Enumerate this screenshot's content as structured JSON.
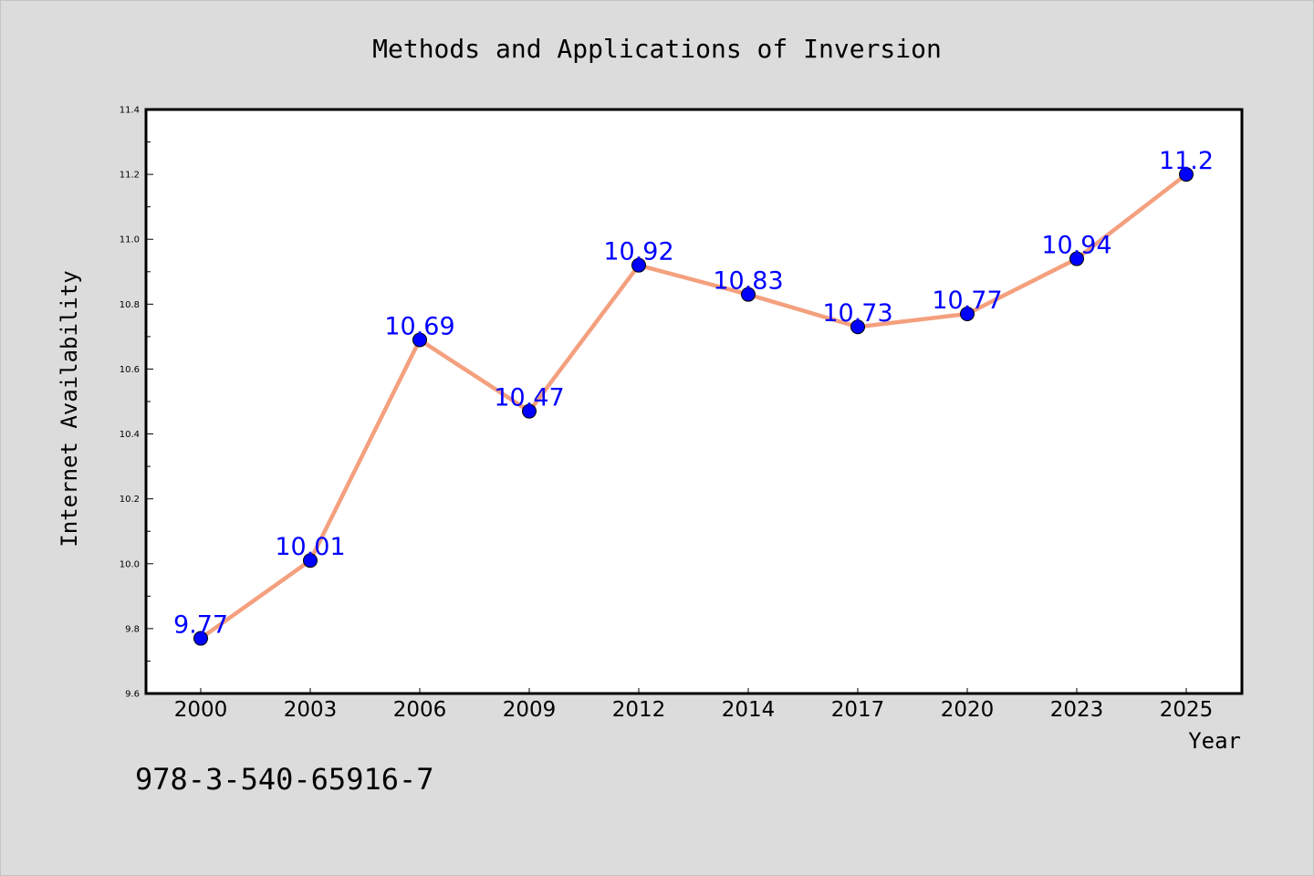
{
  "chart_data": {
    "type": "line",
    "title": "Methods and Applications of Inversion",
    "xlabel": "Year",
    "ylabel": "Internet Availability",
    "categories": [
      "2000",
      "2003",
      "2006",
      "2009",
      "2012",
      "2014",
      "2017",
      "2020",
      "2023",
      "2025"
    ],
    "series": [
      {
        "values": [
          9.77,
          10.01,
          10.69,
          10.47,
          10.92,
          10.83,
          10.73,
          10.77,
          10.94,
          11.2
        ],
        "data_labels": [
          "9.77",
          "10.01",
          "10.69",
          "10.47",
          "10.92",
          "10.83",
          "10.73",
          "10.77",
          "10.94",
          "11.2"
        ],
        "line_color": "#f4a07e",
        "marker_color": "#0000ff"
      }
    ],
    "ylim": [
      9.6,
      11.4
    ],
    "yticks": [
      "9.6",
      "9.8",
      "10.0",
      "10.2",
      "10.4",
      "10.6",
      "10.8",
      "11.0",
      "11.2",
      "11.4"
    ],
    "grid": false,
    "legend": "none"
  },
  "annotation": "978-3-540-65916-7",
  "colors": {
    "background": "#dcdcdc",
    "plot_area": "#ffffff",
    "line": "#f4a07e",
    "marker": "#0000ff",
    "data_label": "#0000ff"
  }
}
